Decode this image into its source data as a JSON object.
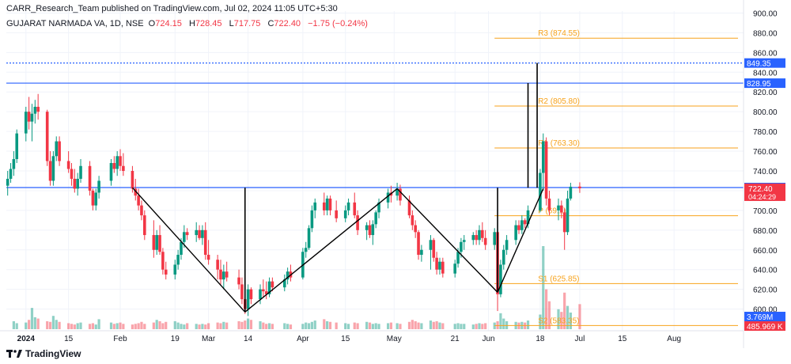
{
  "header": {
    "published": "CARR_Research_Team published on TradingView.com, Jul 02, 2024 11:05 UTC+5:30",
    "symbol": "GUJARAT NARMADA VA, 1D, NSE",
    "o_label": "O",
    "o": "724.15",
    "h_label": "H",
    "h": "728.45",
    "l_label": "L",
    "l": "717.75",
    "c_label": "C",
    "c": "722.40",
    "change": "−1.75 (−0.24%)"
  },
  "brand": {
    "name": "TradingView"
  },
  "colors": {
    "up": "#089981",
    "down": "#f23645",
    "pivot": "#f7a21b",
    "blue_line": "#2962ff",
    "pattern": "#000000",
    "grid": "#f0f3fa"
  },
  "chart_data": {
    "type": "candlestick",
    "symbol": "GUJARAT NARMADA VA",
    "interval": "1D",
    "exchange": "NSE",
    "ylim": [
      578,
      902
    ],
    "y_ticks": [
      600,
      620,
      640,
      660,
      680,
      700,
      720,
      740,
      760,
      780,
      800,
      820,
      840,
      860,
      880,
      900
    ],
    "x_ticks": [
      "2024",
      "15",
      "Feb",
      "19",
      "Mar",
      "14",
      "Apr",
      "15",
      "May",
      "21",
      "Jun",
      "18",
      "Jul",
      "15",
      "Aug"
    ],
    "x_tick_dates": [
      "2024-01-01",
      "2024-01-15",
      "2024-02-01",
      "2024-02-19",
      "2024-03-01",
      "2024-03-14",
      "2024-04-01",
      "2024-04-15",
      "2024-05-01",
      "2024-05-21",
      "2024-06-01",
      "2024-06-18",
      "2024-07-01",
      "2024-07-15",
      "2024-08-01"
    ],
    "candles": [
      {
        "d": "2023-12-26",
        "o": 725,
        "h": 740,
        "l": 715,
        "c": 732
      },
      {
        "d": "2023-12-27",
        "o": 732,
        "h": 748,
        "l": 728,
        "c": 742
      },
      {
        "d": "2023-12-28",
        "o": 742,
        "h": 760,
        "l": 735,
        "c": 752
      },
      {
        "d": "2023-12-29",
        "o": 752,
        "h": 782,
        "l": 748,
        "c": 778
      },
      {
        "d": "2024-01-01",
        "o": 778,
        "h": 805,
        "l": 770,
        "c": 800
      },
      {
        "d": "2024-01-02",
        "o": 800,
        "h": 815,
        "l": 782,
        "c": 790
      },
      {
        "d": "2024-01-03",
        "o": 790,
        "h": 808,
        "l": 770,
        "c": 798
      },
      {
        "d": "2024-01-04",
        "o": 798,
        "h": 812,
        "l": 788,
        "c": 805
      },
      {
        "d": "2024-01-05",
        "o": 805,
        "h": 818,
        "l": 792,
        "c": 800
      },
      {
        "d": "2024-01-08",
        "o": 800,
        "h": 802,
        "l": 745,
        "c": 750
      },
      {
        "d": "2024-01-09",
        "o": 750,
        "h": 760,
        "l": 725,
        "c": 730
      },
      {
        "d": "2024-01-10",
        "o": 730,
        "h": 760,
        "l": 725,
        "c": 755
      },
      {
        "d": "2024-01-11",
        "o": 755,
        "h": 775,
        "l": 750,
        "c": 770
      },
      {
        "d": "2024-01-12",
        "o": 770,
        "h": 775,
        "l": 745,
        "c": 750
      },
      {
        "d": "2024-01-15",
        "o": 750,
        "h": 760,
        "l": 738,
        "c": 742
      },
      {
        "d": "2024-01-16",
        "o": 742,
        "h": 748,
        "l": 725,
        "c": 732
      },
      {
        "d": "2024-01-17",
        "o": 732,
        "h": 742,
        "l": 718,
        "c": 722
      },
      {
        "d": "2024-01-18",
        "o": 722,
        "h": 738,
        "l": 715,
        "c": 732
      },
      {
        "d": "2024-01-19",
        "o": 732,
        "h": 752,
        "l": 728,
        "c": 745
      },
      {
        "d": "2024-01-22",
        "o": 745,
        "h": 750,
        "l": 715,
        "c": 720
      },
      {
        "d": "2024-01-23",
        "o": 720,
        "h": 722,
        "l": 700,
        "c": 705
      },
      {
        "d": "2024-01-24",
        "o": 705,
        "h": 722,
        "l": 700,
        "c": 718
      },
      {
        "d": "2024-01-25",
        "o": 718,
        "h": 735,
        "l": 712,
        "c": 730
      },
      {
        "d": "2024-01-29",
        "o": 730,
        "h": 752,
        "l": 725,
        "c": 748
      },
      {
        "d": "2024-01-30",
        "o": 748,
        "h": 755,
        "l": 738,
        "c": 742
      },
      {
        "d": "2024-01-31",
        "o": 742,
        "h": 760,
        "l": 735,
        "c": 755
      },
      {
        "d": "2024-02-01",
        "o": 755,
        "h": 762,
        "l": 740,
        "c": 745
      },
      {
        "d": "2024-02-02",
        "o": 745,
        "h": 758,
        "l": 735,
        "c": 740
      },
      {
        "d": "2024-02-05",
        "o": 740,
        "h": 745,
        "l": 718,
        "c": 722
      },
      {
        "d": "2024-02-06",
        "o": 722,
        "h": 732,
        "l": 710,
        "c": 715
      },
      {
        "d": "2024-02-07",
        "o": 715,
        "h": 722,
        "l": 700,
        "c": 705
      },
      {
        "d": "2024-02-08",
        "o": 705,
        "h": 710,
        "l": 690,
        "c": 695
      },
      {
        "d": "2024-02-09",
        "o": 695,
        "h": 700,
        "l": 670,
        "c": 675
      },
      {
        "d": "2024-02-12",
        "o": 675,
        "h": 690,
        "l": 652,
        "c": 660
      },
      {
        "d": "2024-02-13",
        "o": 660,
        "h": 680,
        "l": 655,
        "c": 675
      },
      {
        "d": "2024-02-14",
        "o": 675,
        "h": 685,
        "l": 655,
        "c": 658
      },
      {
        "d": "2024-02-15",
        "o": 658,
        "h": 662,
        "l": 635,
        "c": 640
      },
      {
        "d": "2024-02-16",
        "o": 640,
        "h": 648,
        "l": 630,
        "c": 635
      },
      {
        "d": "2024-02-19",
        "o": 635,
        "h": 650,
        "l": 630,
        "c": 645
      },
      {
        "d": "2024-02-20",
        "o": 645,
        "h": 660,
        "l": 640,
        "c": 655
      },
      {
        "d": "2024-02-21",
        "o": 655,
        "h": 672,
        "l": 650,
        "c": 668
      },
      {
        "d": "2024-02-22",
        "o": 668,
        "h": 685,
        "l": 662,
        "c": 678
      },
      {
        "d": "2024-02-23",
        "o": 678,
        "h": 682,
        "l": 670,
        "c": 675
      },
      {
        "d": "2024-02-26",
        "o": 675,
        "h": 688,
        "l": 668,
        "c": 680
      },
      {
        "d": "2024-02-27",
        "o": 680,
        "h": 685,
        "l": 670,
        "c": 672
      },
      {
        "d": "2024-02-28",
        "o": 672,
        "h": 685,
        "l": 665,
        "c": 680
      },
      {
        "d": "2024-02-29",
        "o": 680,
        "h": 688,
        "l": 650,
        "c": 655
      },
      {
        "d": "2024-03-01",
        "o": 655,
        "h": 670,
        "l": 645,
        "c": 650
      },
      {
        "d": "2024-03-04",
        "o": 650,
        "h": 655,
        "l": 630,
        "c": 640
      },
      {
        "d": "2024-03-05",
        "o": 640,
        "h": 650,
        "l": 625,
        "c": 630
      },
      {
        "d": "2024-03-06",
        "o": 630,
        "h": 645,
        "l": 620,
        "c": 638
      },
      {
        "d": "2024-03-07",
        "o": 638,
        "h": 648,
        "l": 628,
        "c": 632
      },
      {
        "d": "2024-03-11",
        "o": 632,
        "h": 640,
        "l": 620,
        "c": 625
      },
      {
        "d": "2024-03-12",
        "o": 625,
        "h": 632,
        "l": 605,
        "c": 610
      },
      {
        "d": "2024-03-13",
        "o": 610,
        "h": 625,
        "l": 595,
        "c": 600
      },
      {
        "d": "2024-03-14",
        "o": 600,
        "h": 625,
        "l": 593,
        "c": 620
      },
      {
        "d": "2024-03-15",
        "o": 620,
        "h": 622,
        "l": 605,
        "c": 610
      },
      {
        "d": "2024-03-18",
        "o": 610,
        "h": 625,
        "l": 605,
        "c": 620
      },
      {
        "d": "2024-03-19",
        "o": 620,
        "h": 630,
        "l": 612,
        "c": 618
      },
      {
        "d": "2024-03-20",
        "o": 618,
        "h": 628,
        "l": 610,
        "c": 615
      },
      {
        "d": "2024-03-21",
        "o": 615,
        "h": 632,
        "l": 612,
        "c": 628
      },
      {
        "d": "2024-03-22",
        "o": 628,
        "h": 632,
        "l": 618,
        "c": 622
      },
      {
        "d": "2024-03-26",
        "o": 622,
        "h": 635,
        "l": 618,
        "c": 630
      },
      {
        "d": "2024-03-27",
        "o": 630,
        "h": 642,
        "l": 625,
        "c": 638
      },
      {
        "d": "2024-03-28",
        "o": 638,
        "h": 645,
        "l": 628,
        "c": 632
      },
      {
        "d": "2024-04-01",
        "o": 632,
        "h": 662,
        "l": 630,
        "c": 658
      },
      {
        "d": "2024-04-02",
        "o": 658,
        "h": 668,
        "l": 652,
        "c": 662
      },
      {
        "d": "2024-04-03",
        "o": 662,
        "h": 685,
        "l": 660,
        "c": 682
      },
      {
        "d": "2024-04-04",
        "o": 682,
        "h": 705,
        "l": 678,
        "c": 700
      },
      {
        "d": "2024-04-05",
        "o": 700,
        "h": 712,
        "l": 692,
        "c": 708
      },
      {
        "d": "2024-04-08",
        "o": 708,
        "h": 718,
        "l": 695,
        "c": 700
      },
      {
        "d": "2024-04-09",
        "o": 700,
        "h": 715,
        "l": 695,
        "c": 712
      },
      {
        "d": "2024-04-10",
        "o": 712,
        "h": 715,
        "l": 695,
        "c": 700
      },
      {
        "d": "2024-04-12",
        "o": 700,
        "h": 710,
        "l": 688,
        "c": 692
      },
      {
        "d": "2024-04-15",
        "o": 692,
        "h": 705,
        "l": 688,
        "c": 700
      },
      {
        "d": "2024-04-16",
        "o": 700,
        "h": 712,
        "l": 695,
        "c": 708
      },
      {
        "d": "2024-04-18",
        "o": 708,
        "h": 718,
        "l": 692,
        "c": 695
      },
      {
        "d": "2024-04-19",
        "o": 695,
        "h": 700,
        "l": 675,
        "c": 680
      },
      {
        "d": "2024-04-22",
        "o": 680,
        "h": 688,
        "l": 670,
        "c": 685
      },
      {
        "d": "2024-04-23",
        "o": 685,
        "h": 690,
        "l": 672,
        "c": 675
      },
      {
        "d": "2024-04-24",
        "o": 675,
        "h": 690,
        "l": 665,
        "c": 686
      },
      {
        "d": "2024-04-25",
        "o": 686,
        "h": 700,
        "l": 682,
        "c": 698
      },
      {
        "d": "2024-04-26",
        "o": 698,
        "h": 712,
        "l": 692,
        "c": 708
      },
      {
        "d": "2024-04-29",
        "o": 708,
        "h": 722,
        "l": 702,
        "c": 718
      },
      {
        "d": "2024-04-30",
        "o": 718,
        "h": 725,
        "l": 708,
        "c": 715
      },
      {
        "d": "2024-05-02",
        "o": 715,
        "h": 728,
        "l": 710,
        "c": 722
      },
      {
        "d": "2024-05-03",
        "o": 722,
        "h": 726,
        "l": 705,
        "c": 710
      },
      {
        "d": "2024-05-06",
        "o": 710,
        "h": 715,
        "l": 692,
        "c": 695
      },
      {
        "d": "2024-05-07",
        "o": 695,
        "h": 700,
        "l": 680,
        "c": 685
      },
      {
        "d": "2024-05-08",
        "o": 685,
        "h": 690,
        "l": 672,
        "c": 678
      },
      {
        "d": "2024-05-09",
        "o": 678,
        "h": 680,
        "l": 650,
        "c": 655
      },
      {
        "d": "2024-05-10",
        "o": 655,
        "h": 665,
        "l": 648,
        "c": 660
      },
      {
        "d": "2024-05-13",
        "o": 660,
        "h": 675,
        "l": 640,
        "c": 670
      },
      {
        "d": "2024-05-14",
        "o": 670,
        "h": 672,
        "l": 648,
        "c": 652
      },
      {
        "d": "2024-05-15",
        "o": 652,
        "h": 658,
        "l": 635,
        "c": 640
      },
      {
        "d": "2024-05-16",
        "o": 640,
        "h": 652,
        "l": 635,
        "c": 648
      },
      {
        "d": "2024-05-17",
        "o": 648,
        "h": 652,
        "l": 632,
        "c": 636
      },
      {
        "d": "2024-05-21",
        "o": 636,
        "h": 650,
        "l": 632,
        "c": 646
      },
      {
        "d": "2024-05-22",
        "o": 646,
        "h": 662,
        "l": 642,
        "c": 658
      },
      {
        "d": "2024-05-23",
        "o": 658,
        "h": 672,
        "l": 652,
        "c": 668
      },
      {
        "d": "2024-05-24",
        "o": 668,
        "h": 675,
        "l": 660,
        "c": 670
      },
      {
        "d": "2024-05-27",
        "o": 670,
        "h": 678,
        "l": 665,
        "c": 675
      },
      {
        "d": "2024-05-28",
        "o": 675,
        "h": 680,
        "l": 665,
        "c": 670
      },
      {
        "d": "2024-05-29",
        "o": 670,
        "h": 685,
        "l": 665,
        "c": 680
      },
      {
        "d": "2024-05-30",
        "o": 680,
        "h": 688,
        "l": 668,
        "c": 672
      },
      {
        "d": "2024-05-31",
        "o": 672,
        "h": 680,
        "l": 660,
        "c": 665
      },
      {
        "d": "2024-06-03",
        "o": 665,
        "h": 682,
        "l": 660,
        "c": 678
      },
      {
        "d": "2024-06-04",
        "o": 678,
        "h": 680,
        "l": 598,
        "c": 615
      },
      {
        "d": "2024-06-05",
        "o": 615,
        "h": 650,
        "l": 612,
        "c": 645
      },
      {
        "d": "2024-06-06",
        "o": 645,
        "h": 665,
        "l": 640,
        "c": 660
      },
      {
        "d": "2024-06-07",
        "o": 660,
        "h": 675,
        "l": 655,
        "c": 670
      },
      {
        "d": "2024-06-10",
        "o": 670,
        "h": 690,
        "l": 665,
        "c": 685
      },
      {
        "d": "2024-06-11",
        "o": 685,
        "h": 690,
        "l": 676,
        "c": 680
      },
      {
        "d": "2024-06-12",
        "o": 680,
        "h": 695,
        "l": 676,
        "c": 690
      },
      {
        "d": "2024-06-13",
        "o": 690,
        "h": 692,
        "l": 682,
        "c": 686
      },
      {
        "d": "2024-06-14",
        "o": 686,
        "h": 705,
        "l": 682,
        "c": 700
      },
      {
        "d": "2024-06-18",
        "o": 700,
        "h": 742,
        "l": 698,
        "c": 738
      },
      {
        "d": "2024-06-19",
        "o": 738,
        "h": 778,
        "l": 720,
        "c": 770
      },
      {
        "d": "2024-06-20",
        "o": 770,
        "h": 774,
        "l": 705,
        "c": 712
      },
      {
        "d": "2024-06-21",
        "o": 712,
        "h": 720,
        "l": 695,
        "c": 700
      },
      {
        "d": "2024-06-24",
        "o": 700,
        "h": 712,
        "l": 690,
        "c": 705
      },
      {
        "d": "2024-06-25",
        "o": 705,
        "h": 710,
        "l": 692,
        "c": 698
      },
      {
        "d": "2024-06-26",
        "o": 698,
        "h": 702,
        "l": 660,
        "c": 678
      },
      {
        "d": "2024-06-27",
        "o": 678,
        "h": 720,
        "l": 675,
        "c": 712
      },
      {
        "d": "2024-06-28",
        "o": 712,
        "h": 728,
        "l": 710,
        "c": 724
      },
      {
        "d": "2024-07-01",
        "o": 724.15,
        "h": 728.45,
        "l": 717.75,
        "c": 722.4
      }
    ],
    "volume_tail": [
      1.2,
      0.9,
      1.0,
      1.4,
      3.2,
      1.8,
      1.6,
      1.2,
      1.1,
      2.0,
      1.4,
      1.1,
      0.9,
      0.8,
      0.7,
      0.9,
      1.0,
      0.8,
      0.9,
      0.7,
      1.5,
      1.0,
      0.8,
      0.9,
      1.0,
      0.8,
      0.7,
      0.8,
      0.9,
      1.1,
      0.8,
      1.0,
      1.4,
      1.2,
      0.9,
      1.1,
      1.2,
      1.0,
      0.8,
      0.7,
      0.9,
      0.8,
      0.7,
      0.8,
      0.7,
      0.9,
      1.0,
      0.9,
      1.1,
      1.0,
      1.2,
      1.1,
      1.3,
      1.6,
      1.4,
      1.2,
      1.0,
      0.8,
      0.9,
      0.8,
      0.9,
      0.8,
      0.7,
      0.8,
      1.0,
      0.9,
      1.1,
      1.3,
      1.5,
      1.2,
      1.1,
      1.0,
      0.9,
      0.8,
      1.0,
      0.9,
      1.1,
      1.0,
      0.8,
      0.9,
      0.8,
      0.9,
      1.0,
      0.9,
      0.8,
      1.1,
      1.4,
      1.2,
      1.0,
      0.9,
      1.3,
      1.1,
      1.2,
      1.0,
      0.9,
      0.8,
      0.9,
      0.8,
      0.8,
      0.7,
      0.8,
      0.9,
      0.8,
      0.9,
      1.0,
      1.2,
      2.4,
      1.6,
      1.2,
      1.1,
      1.0,
      1.1,
      1.0,
      1.3,
      2.2,
      12.5,
      6.0,
      4.2,
      3.0,
      2.6,
      5.5,
      3.5,
      2.5,
      3.769
    ],
    "pivots": [
      {
        "label": "R3 (874.55)",
        "value": 874.55,
        "from": "2024-06-03"
      },
      {
        "label": "R2 (805.80)",
        "value": 805.8,
        "from": "2024-06-03"
      },
      {
        "label": "R1 (763.30)",
        "value": 763.3,
        "from": "2024-06-03"
      },
      {
        "label": "P (69...)",
        "value": 694.55,
        "from": "2024-06-03"
      },
      {
        "label": "S1 (625.85)",
        "value": 625.85,
        "from": "2024-06-03"
      },
      {
        "label": "S2 (583.35)",
        "value": 583.35,
        "from": "2024-06-03"
      }
    ],
    "hlines": [
      {
        "value": 849.35,
        "label": "849.35",
        "style": "dotted"
      },
      {
        "value": 828.95,
        "label": "828.95",
        "style": "solid"
      },
      {
        "value": 723.15,
        "label": "723.15",
        "style": "solid"
      }
    ],
    "pattern_lines": [
      {
        "from": {
          "d": "2024-02-05",
          "p": 723
        },
        "to": {
          "d": "2024-03-13",
          "p": 597
        }
      },
      {
        "from": {
          "d": "2024-03-13",
          "p": 597
        },
        "to": {
          "d": "2024-05-02",
          "p": 722
        }
      },
      {
        "from": {
          "d": "2024-05-02",
          "p": 722
        },
        "to": {
          "d": "2024-06-04",
          "p": 617
        }
      },
      {
        "from": {
          "d": "2024-06-04",
          "p": 617
        },
        "to": {
          "d": "2024-06-19",
          "p": 722
        }
      }
    ],
    "vertical_lines": [
      {
        "d": "2024-03-13",
        "from": 597,
        "to": 723
      },
      {
        "d": "2024-06-04",
        "from": 617,
        "to": 723
      },
      {
        "d": "2024-06-14",
        "from": 723,
        "to": 829
      },
      {
        "d": "2024-06-17",
        "from": 723,
        "to": 849.35
      }
    ],
    "price_label": "722.40",
    "countdown_label": "04:24:29",
    "volume_label": "3.769M",
    "volume_ma_label": "485.969 K"
  }
}
